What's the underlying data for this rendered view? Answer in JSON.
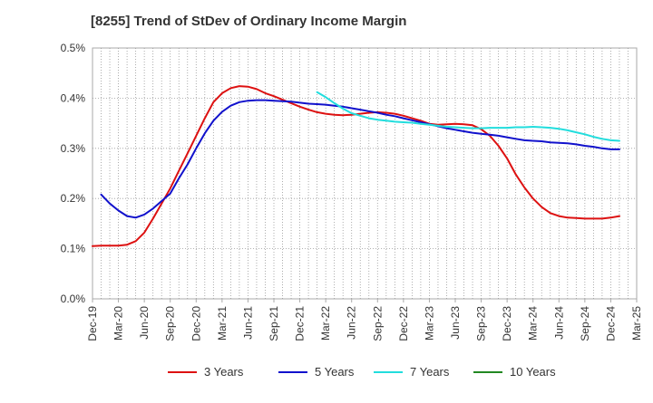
{
  "chart_data": {
    "type": "line",
    "title": "[8255]  Trend of StDev of Ordinary Income Margin",
    "xlabel": "",
    "ylabel": "",
    "x_ticks": [
      "Dec-19",
      "Mar-20",
      "Jun-20",
      "Sep-20",
      "Dec-20",
      "Mar-21",
      "Jun-21",
      "Sep-21",
      "Dec-21",
      "Mar-22",
      "Jun-22",
      "Sep-22",
      "Dec-22",
      "Mar-23",
      "Jun-23",
      "Sep-23",
      "Dec-23",
      "Mar-24",
      "Jun-24",
      "Sep-24",
      "Dec-24",
      "Mar-25"
    ],
    "y_ticks": [
      "0.0%",
      "0.1%",
      "0.2%",
      "0.3%",
      "0.4%",
      "0.5%"
    ],
    "ylim": [
      0,
      0.5
    ],
    "grid": true,
    "legend_position": "bottom",
    "series": [
      {
        "name": "3 Years",
        "color": "#dd1111",
        "points": [
          [
            "Dec-19",
            0.105
          ],
          [
            "Jan-20",
            0.106
          ],
          [
            "Feb-20",
            0.106
          ],
          [
            "Mar-20",
            0.106
          ],
          [
            "Apr-20",
            0.108
          ],
          [
            "May-20",
            0.115
          ],
          [
            "Jun-20",
            0.132
          ],
          [
            "Jul-20",
            0.16
          ],
          [
            "Aug-20",
            0.19
          ],
          [
            "Sep-20",
            0.22
          ],
          [
            "Oct-20",
            0.255
          ],
          [
            "Nov-20",
            0.29
          ],
          [
            "Dec-20",
            0.325
          ],
          [
            "Jan-21",
            0.36
          ],
          [
            "Feb-21",
            0.392
          ],
          [
            "Mar-21",
            0.41
          ],
          [
            "Apr-21",
            0.42
          ],
          [
            "May-21",
            0.424
          ],
          [
            "Jun-21",
            0.423
          ],
          [
            "Jul-21",
            0.418
          ],
          [
            "Aug-21",
            0.41
          ],
          [
            "Sep-21",
            0.404
          ],
          [
            "Oct-21",
            0.397
          ],
          [
            "Nov-21",
            0.39
          ],
          [
            "Dec-21",
            0.383
          ],
          [
            "Jan-22",
            0.377
          ],
          [
            "Feb-22",
            0.372
          ],
          [
            "Mar-22",
            0.369
          ],
          [
            "Apr-22",
            0.367
          ],
          [
            "May-22",
            0.366
          ],
          [
            "Jun-22",
            0.367
          ],
          [
            "Jul-22",
            0.369
          ],
          [
            "Aug-22",
            0.371
          ],
          [
            "Sep-22",
            0.372
          ],
          [
            "Oct-22",
            0.371
          ],
          [
            "Nov-22",
            0.369
          ],
          [
            "Dec-22",
            0.365
          ],
          [
            "Jan-23",
            0.36
          ],
          [
            "Feb-23",
            0.355
          ],
          [
            "Mar-23",
            0.349
          ],
          [
            "Apr-23",
            0.347
          ],
          [
            "May-23",
            0.348
          ],
          [
            "Jun-23",
            0.349
          ],
          [
            "Jul-23",
            0.348
          ],
          [
            "Aug-23",
            0.346
          ],
          [
            "Sep-23",
            0.338
          ],
          [
            "Oct-23",
            0.325
          ],
          [
            "Nov-23",
            0.305
          ],
          [
            "Dec-23",
            0.28
          ],
          [
            "Jan-24",
            0.248
          ],
          [
            "Feb-24",
            0.222
          ],
          [
            "Mar-24",
            0.2
          ],
          [
            "Apr-24",
            0.183
          ],
          [
            "May-24",
            0.171
          ],
          [
            "Jun-24",
            0.165
          ],
          [
            "Jul-24",
            0.162
          ],
          [
            "Aug-24",
            0.161
          ],
          [
            "Sep-24",
            0.16
          ],
          [
            "Oct-24",
            0.16
          ],
          [
            "Nov-24",
            0.16
          ],
          [
            "Dec-24",
            0.162
          ],
          [
            "Jan-25",
            0.165
          ]
        ]
      },
      {
        "name": "5 Years",
        "color": "#1111cc",
        "points": [
          [
            "Jan-20",
            0.208
          ],
          [
            "Feb-20",
            0.19
          ],
          [
            "Mar-20",
            0.176
          ],
          [
            "Apr-20",
            0.165
          ],
          [
            "May-20",
            0.162
          ],
          [
            "Jun-20",
            0.168
          ],
          [
            "Jul-20",
            0.18
          ],
          [
            "Aug-20",
            0.195
          ],
          [
            "Sep-20",
            0.21
          ],
          [
            "Oct-20",
            0.24
          ],
          [
            "Nov-20",
            0.268
          ],
          [
            "Dec-20",
            0.3
          ],
          [
            "Jan-21",
            0.33
          ],
          [
            "Feb-21",
            0.355
          ],
          [
            "Mar-21",
            0.373
          ],
          [
            "Apr-21",
            0.385
          ],
          [
            "May-21",
            0.392
          ],
          [
            "Jun-21",
            0.395
          ],
          [
            "Jul-21",
            0.396
          ],
          [
            "Aug-21",
            0.396
          ],
          [
            "Sep-21",
            0.395
          ],
          [
            "Oct-21",
            0.394
          ],
          [
            "Nov-21",
            0.393
          ],
          [
            "Dec-21",
            0.391
          ],
          [
            "Jan-22",
            0.389
          ],
          [
            "Feb-22",
            0.388
          ],
          [
            "Mar-22",
            0.387
          ],
          [
            "Apr-22",
            0.385
          ],
          [
            "May-22",
            0.383
          ],
          [
            "Jun-22",
            0.38
          ],
          [
            "Jul-22",
            0.377
          ],
          [
            "Aug-22",
            0.374
          ],
          [
            "Sep-22",
            0.371
          ],
          [
            "Oct-22",
            0.367
          ],
          [
            "Nov-22",
            0.364
          ],
          [
            "Dec-22",
            0.36
          ],
          [
            "Jan-23",
            0.356
          ],
          [
            "Feb-23",
            0.352
          ],
          [
            "Mar-23",
            0.348
          ],
          [
            "Apr-23",
            0.344
          ],
          [
            "May-23",
            0.34
          ],
          [
            "Jun-23",
            0.337
          ],
          [
            "Jul-23",
            0.334
          ],
          [
            "Aug-23",
            0.331
          ],
          [
            "Sep-23",
            0.329
          ],
          [
            "Oct-23",
            0.327
          ],
          [
            "Nov-23",
            0.325
          ],
          [
            "Dec-23",
            0.322
          ],
          [
            "Jan-24",
            0.319
          ],
          [
            "Feb-24",
            0.316
          ],
          [
            "Mar-24",
            0.315
          ],
          [
            "Apr-24",
            0.314
          ],
          [
            "May-24",
            0.312
          ],
          [
            "Jun-24",
            0.311
          ],
          [
            "Jul-24",
            0.31
          ],
          [
            "Aug-24",
            0.308
          ],
          [
            "Sep-24",
            0.305
          ],
          [
            "Oct-24",
            0.303
          ],
          [
            "Nov-24",
            0.3
          ],
          [
            "Dec-24",
            0.298
          ],
          [
            "Jan-25",
            0.298
          ]
        ]
      },
      {
        "name": "7 Years",
        "color": "#22dddd",
        "points": [
          [
            "Feb-22",
            0.412
          ],
          [
            "Mar-22",
            0.402
          ],
          [
            "Apr-22",
            0.39
          ],
          [
            "May-22",
            0.379
          ],
          [
            "Jun-22",
            0.37
          ],
          [
            "Jul-22",
            0.365
          ],
          [
            "Aug-22",
            0.36
          ],
          [
            "Sep-22",
            0.357
          ],
          [
            "Oct-22",
            0.355
          ],
          [
            "Nov-22",
            0.353
          ],
          [
            "Dec-22",
            0.352
          ],
          [
            "Jan-23",
            0.351
          ],
          [
            "Feb-23",
            0.349
          ],
          [
            "Mar-23",
            0.347
          ],
          [
            "Apr-23",
            0.345
          ],
          [
            "May-23",
            0.343
          ],
          [
            "Jun-23",
            0.342
          ],
          [
            "Jul-23",
            0.341
          ],
          [
            "Aug-23",
            0.34
          ],
          [
            "Sep-23",
            0.34
          ],
          [
            "Oct-23",
            0.341
          ],
          [
            "Nov-23",
            0.341
          ],
          [
            "Dec-23",
            0.341
          ],
          [
            "Jan-24",
            0.342
          ],
          [
            "Feb-24",
            0.342
          ],
          [
            "Mar-24",
            0.343
          ],
          [
            "Apr-24",
            0.342
          ],
          [
            "May-24",
            0.341
          ],
          [
            "Jun-24",
            0.339
          ],
          [
            "Jul-24",
            0.336
          ],
          [
            "Aug-24",
            0.332
          ],
          [
            "Sep-24",
            0.328
          ],
          [
            "Oct-24",
            0.323
          ],
          [
            "Nov-24",
            0.319
          ],
          [
            "Dec-24",
            0.316
          ],
          [
            "Jan-25",
            0.315
          ]
        ]
      },
      {
        "name": "10 Years",
        "color": "#228822",
        "points": []
      }
    ]
  }
}
